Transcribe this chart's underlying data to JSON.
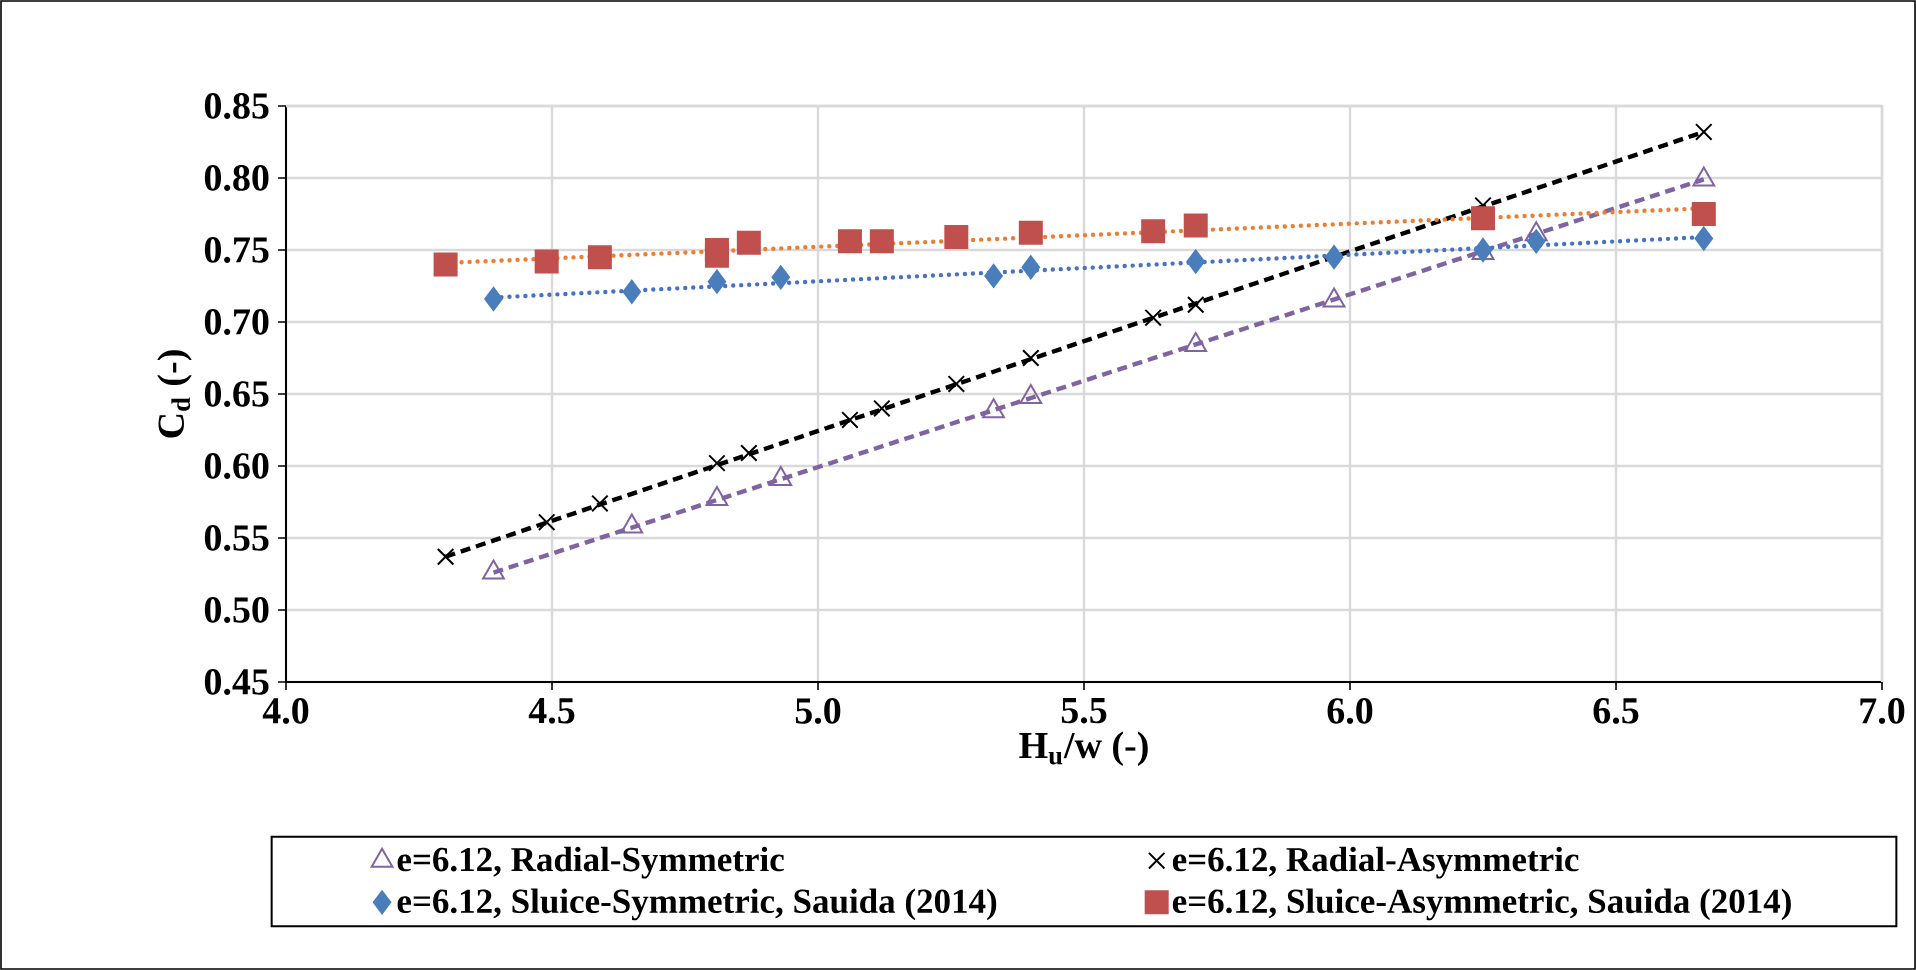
{
  "chart_data": {
    "type": "scatter",
    "xlabel": "H$_{u}$/w (-)",
    "ylabel": "C$_{d}$ (-)",
    "xlim": [
      4.0,
      7.0
    ],
    "ylim": [
      0.45,
      0.85
    ],
    "xticks": [
      {
        "value": 4.0,
        "label": "4.0"
      },
      {
        "value": 4.5,
        "label": "4.5"
      },
      {
        "value": 5.0,
        "label": "5.0"
      },
      {
        "value": 5.5,
        "label": "5.5"
      },
      {
        "value": 6.0,
        "label": "6.0"
      },
      {
        "value": 6.5,
        "label": "6.5"
      },
      {
        "value": 7.0,
        "label": "7.0"
      }
    ],
    "yticks": [
      {
        "value": 0.45,
        "label": "0.45"
      },
      {
        "value": 0.5,
        "label": "0.50"
      },
      {
        "value": 0.55,
        "label": "0.55"
      },
      {
        "value": 0.6,
        "label": "0.60"
      },
      {
        "value": 0.65,
        "label": "0.65"
      },
      {
        "value": 0.7,
        "label": "0.70"
      },
      {
        "value": 0.75,
        "label": "0.75"
      },
      {
        "value": 0.8,
        "label": "0.80"
      },
      {
        "value": 0.85,
        "label": "0.85"
      }
    ],
    "grid": true,
    "legend": "bottom",
    "series": [
      {
        "name": "e=6.12, Radial-Symmetric",
        "type": "scatter",
        "marker": "triangle",
        "color": "#8064a2",
        "x": [
          4.39,
          4.65,
          4.81,
          4.93,
          5.33,
          5.4,
          5.71,
          5.97,
          6.25,
          6.35,
          6.665
        ],
        "values": [
          0.526,
          0.558,
          0.577,
          0.591,
          0.638,
          0.648,
          0.684,
          0.715,
          0.748,
          0.761,
          0.799
        ]
      },
      {
        "name": "e=6.12, Radial-Asymmetric",
        "type": "scatter",
        "marker": "cross",
        "color": "#000000",
        "x": [
          4.3,
          4.49,
          4.59,
          4.81,
          4.87,
          5.06,
          5.12,
          5.26,
          5.4,
          5.63,
          5.71,
          6.25,
          6.665
        ],
        "values": [
          0.537,
          0.561,
          0.574,
          0.602,
          0.609,
          0.632,
          0.64,
          0.657,
          0.675,
          0.703,
          0.712,
          0.781,
          0.832
        ]
      },
      {
        "name": "e=6.12, Sluice-Symmetric, Sauida (2014)",
        "type": "scatter",
        "marker": "diamond",
        "color": "#4a7ebb",
        "x": [
          4.39,
          4.65,
          4.81,
          4.93,
          5.33,
          5.4,
          5.71,
          5.97,
          6.25,
          6.35,
          6.665
        ],
        "values": [
          0.716,
          0.721,
          0.728,
          0.731,
          0.732,
          0.738,
          0.742,
          0.745,
          0.75,
          0.756,
          0.758
        ]
      },
      {
        "name": "e=6.12, Sluice-Asymmetric, Sauida (2014)",
        "type": "scatter",
        "marker": "square",
        "color": "#c0504d",
        "x": [
          4.3,
          4.49,
          4.59,
          4.81,
          4.81,
          4.87,
          5.06,
          5.12,
          5.26,
          5.4,
          5.63,
          5.71,
          6.25,
          6.665
        ],
        "values": [
          0.74,
          0.742,
          0.745,
          0.75,
          0.746,
          0.755,
          0.756,
          0.756,
          0.759,
          0.762,
          0.763,
          0.767,
          0.772,
          0.775
        ]
      },
      {
        "type": "line",
        "line_style": "dashed",
        "color": "#8064a2",
        "x": [
          4.39,
          6.665
        ],
        "values": [
          0.526,
          0.799
        ]
      },
      {
        "type": "line",
        "line_style": "dashed",
        "color": "#000000",
        "x": [
          4.3,
          6.665
        ],
        "values": [
          0.537,
          0.832
        ]
      },
      {
        "type": "line",
        "line_style": "dotted",
        "color": "#4472c4",
        "x": [
          4.39,
          6.665
        ],
        "values": [
          0.717,
          0.759
        ]
      },
      {
        "type": "line",
        "line_style": "dotted",
        "color": "#ed7d31",
        "x": [
          4.3,
          6.665
        ],
        "values": [
          0.741,
          0.779
        ]
      }
    ]
  }
}
